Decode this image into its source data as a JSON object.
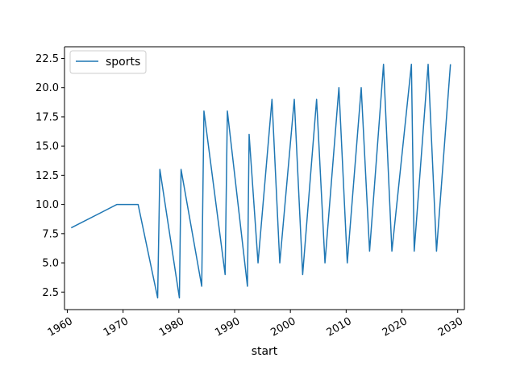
{
  "chart_data": {
    "type": "line",
    "title": "",
    "xlabel": "start",
    "ylabel": "",
    "xlim": [
      1959.5,
      2031.2
    ],
    "ylim": [
      1.0,
      23.5
    ],
    "grid": false,
    "legend_position": "upper-left",
    "x_ticks": [
      1960,
      1970,
      1980,
      1990,
      2000,
      2010,
      2020,
      2030
    ],
    "x_tick_labels": [
      "1960",
      "1970",
      "1980",
      "1990",
      "2000",
      "2010",
      "2020",
      "2030"
    ],
    "y_ticks": [
      2.5,
      5.0,
      7.5,
      10.0,
      12.5,
      15.0,
      17.5,
      20.0,
      22.5
    ],
    "y_tick_labels": [
      "2.5",
      "5.0",
      "7.5",
      "10.0",
      "12.5",
      "15.0",
      "17.5",
      "20.0",
      "22.5"
    ],
    "series": [
      {
        "name": "sports",
        "color": "#1f77b4",
        "x": [
          1960.7,
          1968.9,
          1972.7,
          1976.2,
          1976.6,
          1980.1,
          1980.4,
          1984.1,
          1984.5,
          1988.3,
          1988.7,
          1992.3,
          1992.6,
          1994.2,
          1996.7,
          1998.1,
          2000.7,
          2002.2,
          2004.7,
          2006.2,
          2008.7,
          2010.2,
          2012.7,
          2014.2,
          2016.7,
          2018.2,
          2021.7,
          2022.2,
          2024.7,
          2026.2,
          2028.7
        ],
        "values": [
          8,
          10,
          10,
          2,
          13,
          2,
          13,
          3,
          18,
          4,
          18,
          3,
          16,
          5,
          19,
          5,
          19,
          4,
          19,
          5,
          20,
          5,
          20,
          6,
          22,
          6,
          22,
          6,
          22,
          6,
          22
        ]
      }
    ]
  }
}
